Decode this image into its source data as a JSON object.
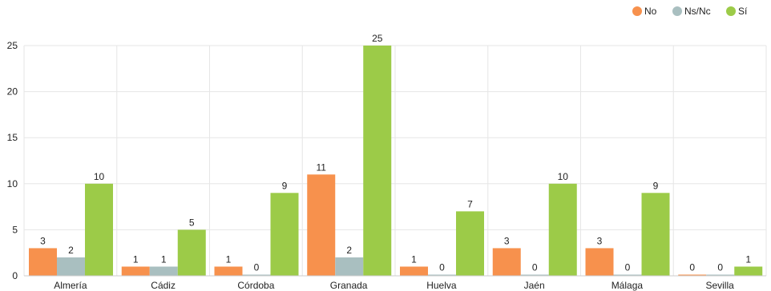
{
  "chart_data": {
    "type": "bar",
    "title": "",
    "xlabel": "",
    "ylabel": "",
    "categories": [
      "Almería",
      "Cádiz",
      "Córdoba",
      "Granada",
      "Huelva",
      "Jaén",
      "Málaga",
      "Sevilla"
    ],
    "series": [
      {
        "name": "No",
        "color": "#f7914d",
        "values": [
          3,
          1,
          1,
          11,
          1,
          3,
          3,
          0
        ]
      },
      {
        "name": "Ns/Nc",
        "color": "#a9bfc0",
        "values": [
          2,
          1,
          0,
          2,
          0,
          0,
          0,
          0
        ]
      },
      {
        "name": "Sí",
        "color": "#9ccb48",
        "values": [
          10,
          5,
          9,
          25,
          7,
          10,
          9,
          1
        ]
      }
    ],
    "ylim": [
      0,
      25
    ],
    "yticks": [
      0,
      5,
      10,
      15,
      20,
      25
    ],
    "grid": true,
    "legend_position": "top-right",
    "show_data_labels": true
  }
}
